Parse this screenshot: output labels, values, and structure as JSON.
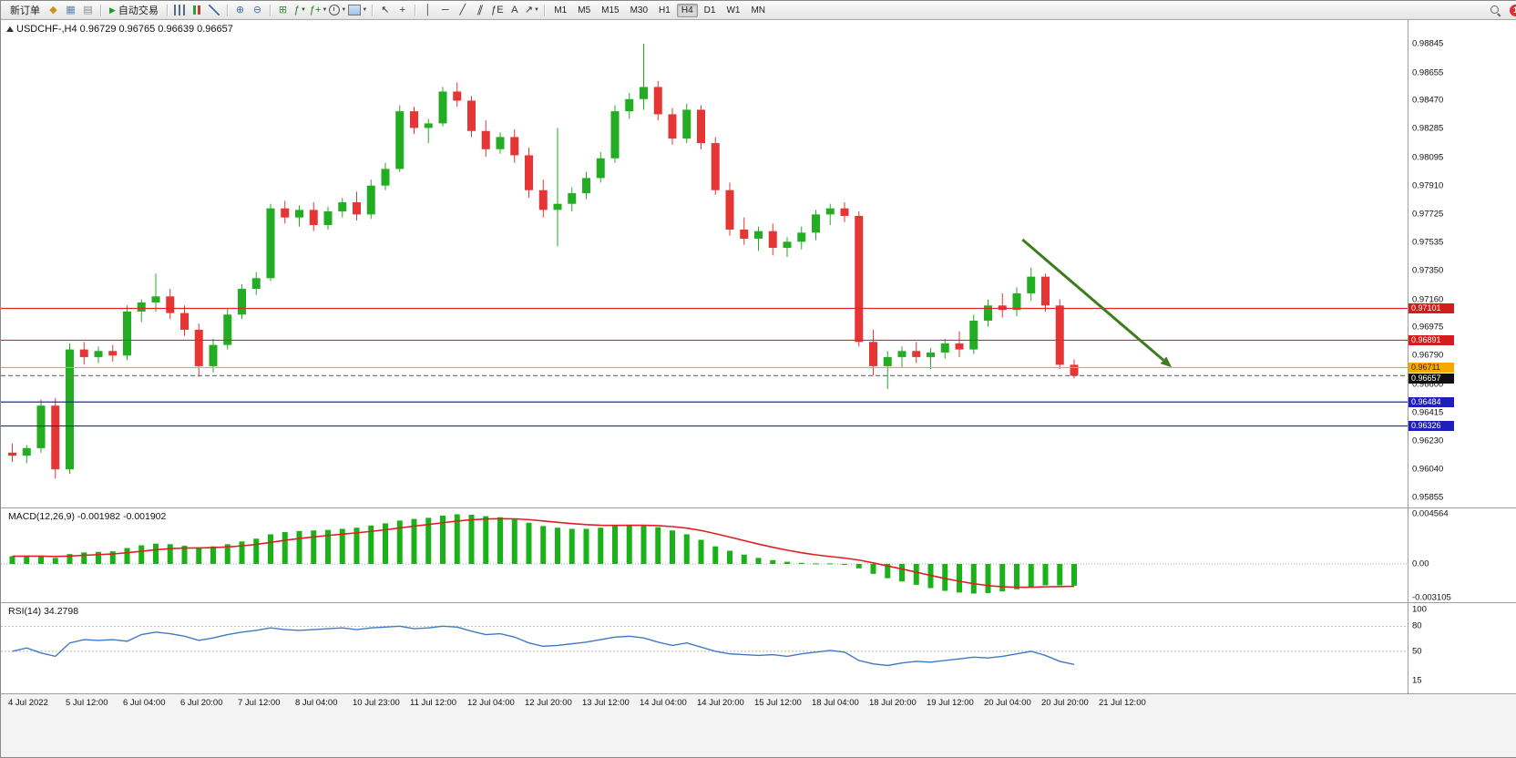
{
  "toolbar": {
    "new_order_label": "新订单",
    "autotrade_label": "自动交易",
    "timeframes": [
      "M1",
      "M5",
      "M15",
      "M30",
      "H1",
      "H4",
      "D1",
      "W1",
      "MN"
    ],
    "active_timeframe": "H4",
    "notification_count": "1",
    "icons_pre": [
      {
        "name": "symbols-icon",
        "type": "glyph",
        "glyph": "◆",
        "color": "#c79418"
      },
      {
        "name": "chart-window-icon",
        "type": "glyph",
        "glyph": "▦",
        "color": "#5b82b4"
      },
      {
        "name": "profiles-icon",
        "type": "glyph",
        "glyph": "▤",
        "color": "#8a8a8a"
      }
    ],
    "icons_main": [
      {
        "type": "sep"
      },
      {
        "name": "bar-chart-icon",
        "type": "bars"
      },
      {
        "name": "candlestick-chart-icon",
        "type": "candles"
      },
      {
        "name": "line-chart-icon",
        "type": "linechart"
      },
      {
        "type": "sep"
      },
      {
        "name": "zoom-in-icon",
        "type": "glyph",
        "glyph": "⊕",
        "color": "#3c6ea8"
      },
      {
        "name": "zoom-out-icon",
        "type": "glyph",
        "glyph": "⊖",
        "color": "#3c6ea8"
      },
      {
        "type": "sep"
      },
      {
        "name": "tile-windows-icon",
        "type": "glyph",
        "glyph": "⊞",
        "color": "#2f8f2f"
      },
      {
        "name": "indicators-icon",
        "type": "glyph",
        "glyph": "ƒ",
        "color": "#1f7a1f",
        "caret": true
      },
      {
        "name": "add-indicator-icon",
        "type": "glyph",
        "glyph": "ƒ+",
        "color": "#1f7a1f",
        "caret": true
      },
      {
        "name": "periods-icon",
        "type": "clock",
        "caret": true
      },
      {
        "name": "templates-icon",
        "type": "tmpl",
        "caret": true
      },
      {
        "type": "sep"
      },
      {
        "name": "cursor-icon",
        "type": "glyph",
        "glyph": "↖",
        "color": "#333333"
      },
      {
        "name": "crosshair-icon",
        "type": "glyph",
        "glyph": "+",
        "color": "#333333"
      },
      {
        "type": "sep"
      },
      {
        "name": "vertical-line-icon",
        "type": "glyph",
        "glyph": "│",
        "color": "#333333"
      },
      {
        "name": "horizontal-line-icon",
        "type": "glyph",
        "glyph": "─",
        "color": "#333333"
      },
      {
        "name": "trendline-icon",
        "type": "glyph",
        "glyph": "╱",
        "color": "#333333"
      },
      {
        "name": "equidistant-channel-icon",
        "type": "glyph",
        "glyph": "∥",
        "color": "#333333",
        "skew": true
      },
      {
        "name": "fibonacci-icon",
        "type": "glyph",
        "glyph": "ƒE",
        "color": "#333333"
      },
      {
        "name": "text-icon",
        "type": "glyph",
        "glyph": "A",
        "color": "#333333"
      },
      {
        "name": "arrows-icon",
        "type": "glyph",
        "glyph": "↗",
        "color": "#333333",
        "caret": true
      },
      {
        "type": "sep"
      }
    ]
  },
  "chart": {
    "title": "USDCHF-,H4 0.96729 0.96765 0.96639 0.96657",
    "symbol": "USDCHF-",
    "period": "H4"
  },
  "chart_data": {
    "type": "candlestick",
    "symbol": "USDCHF-",
    "timeframe": "H4",
    "colors": {
      "bull": "#22ad22",
      "bear": "#e63535",
      "background": "#ffffff"
    },
    "candles": [
      [
        0.9615,
        0.9621,
        0.9609,
        0.9613
      ],
      [
        0.9613,
        0.962,
        0.9608,
        0.9618
      ],
      [
        0.9618,
        0.965,
        0.9615,
        0.9646
      ],
      [
        0.9646,
        0.9651,
        0.9598,
        0.9604
      ],
      [
        0.9604,
        0.9687,
        0.9601,
        0.9683
      ],
      [
        0.9683,
        0.9688,
        0.9673,
        0.9678
      ],
      [
        0.9678,
        0.9685,
        0.9674,
        0.9682
      ],
      [
        0.9682,
        0.9686,
        0.9675,
        0.9679
      ],
      [
        0.9679,
        0.9712,
        0.9676,
        0.9708
      ],
      [
        0.9708,
        0.9716,
        0.9701,
        0.9714
      ],
      [
        0.9714,
        0.9733,
        0.9708,
        0.9718
      ],
      [
        0.9718,
        0.9723,
        0.9703,
        0.9707
      ],
      [
        0.9707,
        0.9712,
        0.9692,
        0.9696
      ],
      [
        0.9696,
        0.97,
        0.9665,
        0.9672
      ],
      [
        0.9672,
        0.969,
        0.9668,
        0.9686
      ],
      [
        0.9686,
        0.971,
        0.9683,
        0.9706
      ],
      [
        0.9706,
        0.9726,
        0.9703,
        0.9723
      ],
      [
        0.9723,
        0.9734,
        0.9719,
        0.973
      ],
      [
        0.973,
        0.9779,
        0.9728,
        0.9776
      ],
      [
        0.9776,
        0.9781,
        0.9766,
        0.977
      ],
      [
        0.977,
        0.9778,
        0.9764,
        0.9775
      ],
      [
        0.9775,
        0.978,
        0.9761,
        0.9765
      ],
      [
        0.9765,
        0.9777,
        0.9762,
        0.9774
      ],
      [
        0.9774,
        0.9783,
        0.977,
        0.978
      ],
      [
        0.978,
        0.9787,
        0.9768,
        0.9772
      ],
      [
        0.9772,
        0.9795,
        0.9769,
        0.9791
      ],
      [
        0.9791,
        0.9806,
        0.9788,
        0.9802
      ],
      [
        0.9802,
        0.9844,
        0.98,
        0.984
      ],
      [
        0.984,
        0.9843,
        0.9825,
        0.9829
      ],
      [
        0.9829,
        0.9835,
        0.9819,
        0.9832
      ],
      [
        0.9832,
        0.9856,
        0.983,
        0.9853
      ],
      [
        0.9853,
        0.9859,
        0.9843,
        0.9847
      ],
      [
        0.9847,
        0.985,
        0.9823,
        0.9827
      ],
      [
        0.9827,
        0.9834,
        0.981,
        0.9815
      ],
      [
        0.9815,
        0.9826,
        0.9812,
        0.9823
      ],
      [
        0.9823,
        0.9828,
        0.9806,
        0.9811
      ],
      [
        0.9811,
        0.9816,
        0.9783,
        0.9788
      ],
      [
        0.9788,
        0.9795,
        0.977,
        0.9775
      ],
      [
        0.9775,
        0.9829,
        0.9751,
        0.9779
      ],
      [
        0.9779,
        0.979,
        0.9774,
        0.9786
      ],
      [
        0.9786,
        0.98,
        0.9782,
        0.9796
      ],
      [
        0.9796,
        0.9813,
        0.9793,
        0.9809
      ],
      [
        0.9809,
        0.9844,
        0.9806,
        0.984
      ],
      [
        0.984,
        0.9852,
        0.9835,
        0.9848
      ],
      [
        0.9848,
        0.98845,
        0.9841,
        0.9856
      ],
      [
        0.9856,
        0.986,
        0.9834,
        0.9838
      ],
      [
        0.9838,
        0.9842,
        0.9818,
        0.9822
      ],
      [
        0.9822,
        0.9845,
        0.9819,
        0.9841
      ],
      [
        0.9841,
        0.9844,
        0.9815,
        0.9819
      ],
      [
        0.9819,
        0.9823,
        0.9785,
        0.9788
      ],
      [
        0.9788,
        0.9793,
        0.9758,
        0.9762
      ],
      [
        0.9762,
        0.977,
        0.9752,
        0.9756
      ],
      [
        0.9756,
        0.9764,
        0.9748,
        0.9761
      ],
      [
        0.9761,
        0.9766,
        0.9745,
        0.975
      ],
      [
        0.975,
        0.9757,
        0.9744,
        0.9754
      ],
      [
        0.9754,
        0.9764,
        0.9749,
        0.976
      ],
      [
        0.976,
        0.9775,
        0.9755,
        0.9772
      ],
      [
        0.9772,
        0.9779,
        0.9765,
        0.9776
      ],
      [
        0.9776,
        0.978,
        0.9767,
        0.9771
      ],
      [
        0.9771,
        0.9774,
        0.9685,
        0.9688
      ],
      [
        0.9688,
        0.9696,
        0.9666,
        0.9672
      ],
      [
        0.9672,
        0.9682,
        0.9657,
        0.9678
      ],
      [
        0.9678,
        0.9685,
        0.9671,
        0.9682
      ],
      [
        0.9682,
        0.9688,
        0.9674,
        0.9678
      ],
      [
        0.9678,
        0.9684,
        0.967,
        0.9681
      ],
      [
        0.9681,
        0.969,
        0.9677,
        0.9687
      ],
      [
        0.9687,
        0.9695,
        0.9678,
        0.9683
      ],
      [
        0.9683,
        0.9706,
        0.968,
        0.9702
      ],
      [
        0.9702,
        0.9716,
        0.9698,
        0.9712
      ],
      [
        0.9712,
        0.972,
        0.9704,
        0.9709
      ],
      [
        0.9709,
        0.9724,
        0.9705,
        0.972
      ],
      [
        0.972,
        0.9737,
        0.9715,
        0.9731
      ],
      [
        0.9731,
        0.9733,
        0.9708,
        0.9712
      ],
      [
        0.9712,
        0.9716,
        0.967,
        0.96729
      ],
      [
        0.96729,
        0.96765,
        0.96639,
        0.96657
      ]
    ],
    "hlines": [
      {
        "price": 0.97101,
        "label": "0.97101",
        "color": "#e02626",
        "style": "solid",
        "label_bg": "#d41c1c",
        "label_fg": "#ffffff"
      },
      {
        "price": 0.96891,
        "label": "0.96891",
        "color": "#e02626",
        "style": "solid",
        "label_bg": "#d41c1c",
        "label_fg": "#ffffff"
      },
      {
        "price": 0.96711,
        "label": "0.96711",
        "color": "#f5a800",
        "style": "solid",
        "label_bg": "#f5a800",
        "label_fg": "#3a2500"
      },
      {
        "price": 0.96657,
        "label": "0.96657",
        "color": "#777777",
        "style": "dashed",
        "label_bg": "#101010",
        "label_fg": "#ffffff",
        "name": "bid-line"
      },
      {
        "price": 0.96484,
        "label": "0.96484",
        "color": "#2222cc",
        "style": "solid",
        "label_bg": "#1f1fbe",
        "label_fg": "#ffffff"
      },
      {
        "price": 0.96326,
        "label": "0.96326",
        "color": "#2222cc",
        "style": "solid",
        "label_bg": "#1f1fbe",
        "label_fg": "#ffffff"
      }
    ],
    "trend_arrow": {
      "from_index": 70.4,
      "from_price": 0.97554,
      "to_index": 80.8,
      "to_price": 0.96713,
      "color": "#3e7d1e"
    },
    "price_axis_labels": [
      "0.98845",
      "0.98655",
      "0.98470",
      "0.98285",
      "0.98095",
      "0.97910",
      "0.97725",
      "0.97535",
      "0.97350",
      "0.97160",
      "0.96975",
      "0.96790",
      "0.96600",
      "0.96415",
      "0.96230",
      "0.96040",
      "0.95855"
    ],
    "time_axis_labels": [
      "4 Jul 2022",
      "5 Jul 12:00",
      "6 Jul 04:00",
      "6 Jul 20:00",
      "7 Jul 12:00",
      "8 Jul 04:00",
      "10 Jul 23:00",
      "11 Jul 12:00",
      "12 Jul 04:00",
      "12 Jul 20:00",
      "13 Jul 12:00",
      "14 Jul 04:00",
      "14 Jul 20:00",
      "15 Jul 12:00",
      "18 Jul 04:00",
      "18 Jul 20:00",
      "19 Jul 12:00",
      "20 Jul 04:00",
      "20 Jul 20:00",
      "21 Jul 12:00"
    ],
    "macd": {
      "label": "MACD(12,26,9) -0.001982 -0.001902",
      "histogram_color": "#19b219",
      "signal_color": "#e02020",
      "axis_labels": [
        "0.004564",
        "0.00",
        "-0.003105"
      ],
      "values": [
        0.0007,
        0.00075,
        0.00072,
        0.00055,
        0.0009,
        0.00105,
        0.0011,
        0.00115,
        0.00145,
        0.0017,
        0.00185,
        0.0018,
        0.00165,
        0.0015,
        0.0016,
        0.0018,
        0.00205,
        0.0023,
        0.0027,
        0.0029,
        0.003,
        0.00305,
        0.0031,
        0.0032,
        0.0033,
        0.0035,
        0.0037,
        0.00395,
        0.0041,
        0.0042,
        0.0044,
        0.00452,
        0.00448,
        0.00435,
        0.00425,
        0.00405,
        0.00375,
        0.00345,
        0.0033,
        0.0032,
        0.0032,
        0.0033,
        0.00345,
        0.00355,
        0.00355,
        0.00335,
        0.00305,
        0.0027,
        0.0022,
        0.0016,
        0.0012,
        0.00085,
        0.00055,
        0.00035,
        0.0002,
        0.0001,
        5e-05,
        5e-05,
        0.0,
        -0.0004,
        -0.0009,
        -0.0013,
        -0.0016,
        -0.0019,
        -0.0022,
        -0.00245,
        -0.0026,
        -0.0027,
        -0.00265,
        -0.0025,
        -0.0023,
        -0.0021,
        -0.00195,
        -0.00195,
        -0.001982
      ]
    },
    "rsi": {
      "label": "RSI(14) 34.2798",
      "period": 14,
      "value": 34.2798,
      "line_color": "#4179c4",
      "levels": [
        100,
        80,
        50,
        15
      ],
      "dashed_levels": [
        80,
        50
      ],
      "values": [
        50,
        54,
        48,
        44,
        60,
        64,
        63,
        64,
        62,
        70,
        73,
        71,
        68,
        63,
        66,
        70,
        73,
        75,
        78,
        76,
        75,
        76,
        77,
        78,
        76,
        78,
        79,
        80,
        77,
        78,
        80,
        79,
        74,
        70,
        71,
        67,
        60,
        56,
        57,
        59,
        61,
        64,
        67,
        68,
        66,
        61,
        57,
        60,
        55,
        50,
        47,
        46,
        45,
        46,
        44,
        47,
        49,
        51,
        49,
        39,
        35,
        33,
        36,
        38,
        37,
        39,
        41,
        43,
        42,
        44,
        47,
        50,
        45,
        38,
        34.28
      ]
    }
  }
}
